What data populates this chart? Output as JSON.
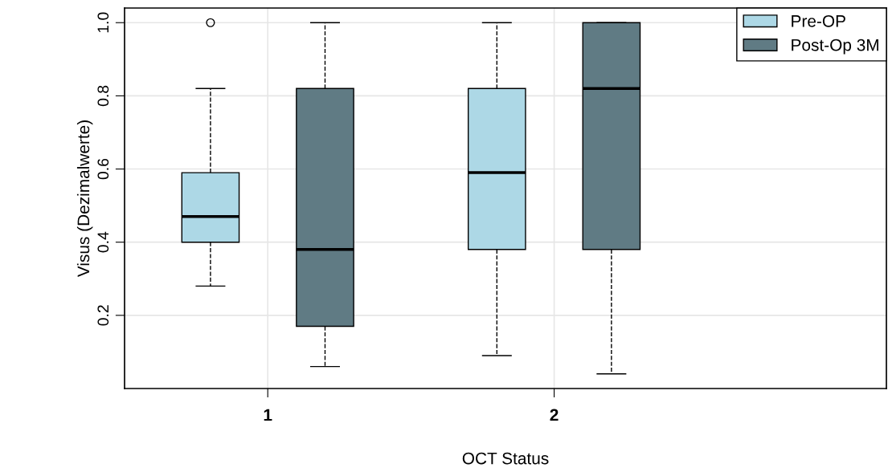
{
  "chart_data": {
    "type": "box",
    "xlabel": "OCT Status",
    "ylabel": "Visus (Dezimalwerte)",
    "categories": [
      "1",
      "2"
    ],
    "series": [
      {
        "name": "Pre-OP",
        "color": "#add8e6",
        "boxes": [
          {
            "low": 0.28,
            "q1": 0.4,
            "median": 0.47,
            "q3": 0.59,
            "high": 0.82,
            "outliers": [
              1.0
            ]
          },
          {
            "low": 0.09,
            "q1": 0.38,
            "median": 0.59,
            "q3": 0.82,
            "high": 1.0
          }
        ]
      },
      {
        "name": "Post-Op 3M",
        "color": "#607b84",
        "boxes": [
          {
            "low": 0.06,
            "q1": 0.17,
            "median": 0.38,
            "q3": 0.82,
            "high": 1.0
          },
          {
            "low": 0.04,
            "q1": 0.38,
            "median": 0.82,
            "q3": 1.0,
            "high": 1.0
          }
        ]
      }
    ],
    "ylim": [
      0.0,
      1.04
    ],
    "yticks": [
      0.2,
      0.4,
      0.6,
      0.8,
      {
        "value": 1,
        "label": "1.0"
      }
    ],
    "grid": true,
    "legend": "top right",
    "line_style": "dashed"
  }
}
